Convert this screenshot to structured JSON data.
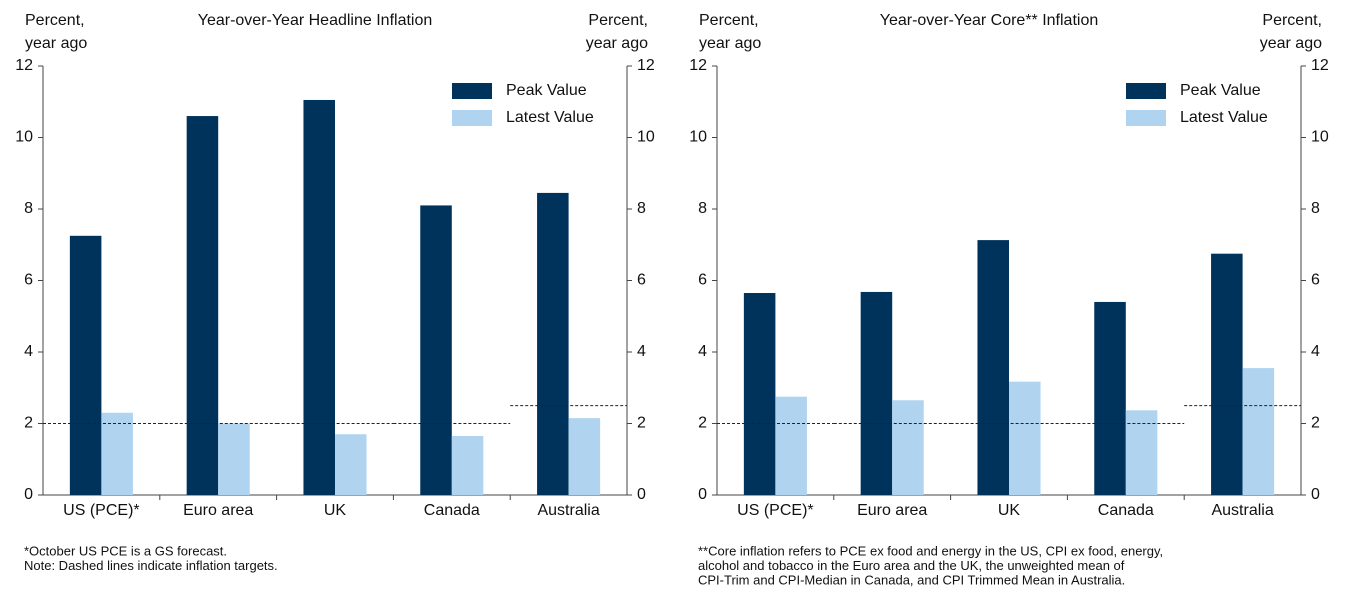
{
  "chart_data": [
    {
      "type": "bar",
      "title": "Year-over-Year Headline Inflation",
      "y_label": [
        "Percent,",
        "year ago"
      ],
      "y2_label": [
        "Percent,",
        "year ago"
      ],
      "categories": [
        "US (PCE)*",
        "Euro area",
        "UK",
        "Canada",
        "Australia"
      ],
      "series": [
        {
          "name": "Peak Value",
          "color": "#00335c",
          "values": [
            7.25,
            10.6,
            11.05,
            8.1,
            8.45
          ]
        },
        {
          "name": "Latest Value",
          "color": "#b0d4f0",
          "values": [
            2.3,
            2.0,
            1.7,
            1.65,
            2.15
          ]
        }
      ],
      "targets": [
        2,
        2,
        2,
        2,
        2.5
      ],
      "ylim": [
        0,
        12
      ],
      "yticks": [
        0,
        2,
        4,
        6,
        8,
        10,
        12
      ],
      "y2lim": [
        0,
        12
      ],
      "y2ticks": [
        0,
        2,
        4,
        6,
        8,
        10,
        12
      ],
      "legend": "upper right",
      "notes": [
        "*October US PCE is a GS forecast.",
        "Note: Dashed lines indicate inflation targets."
      ]
    },
    {
      "type": "bar",
      "title": "Year-over-Year Core** Inflation",
      "y_label": [
        "Percent,",
        "year ago"
      ],
      "y2_label": [
        "Percent,",
        "year ago"
      ],
      "categories": [
        "US (PCE)*",
        "Euro area",
        "UK",
        "Canada",
        "Australia"
      ],
      "series": [
        {
          "name": "Peak Value",
          "color": "#00335c",
          "values": [
            5.65,
            5.68,
            7.13,
            5.4,
            6.75
          ]
        },
        {
          "name": "Latest Value",
          "color": "#b0d4f0",
          "values": [
            2.75,
            2.65,
            3.17,
            2.37,
            3.55
          ]
        }
      ],
      "targets": [
        2,
        2,
        2,
        2,
        2.5
      ],
      "ylim": [
        0,
        12
      ],
      "yticks": [
        0,
        2,
        4,
        6,
        8,
        10,
        12
      ],
      "y2lim": [
        0,
        12
      ],
      "y2ticks": [
        0,
        2,
        4,
        6,
        8,
        10,
        12
      ],
      "legend": "upper right",
      "notes": [
        "**Core inflation refers to PCE ex food and energy in the US, CPI ex food, energy,",
        "alcohol and tobacco in the Euro area and the UK, the unweighted mean of",
        "CPI-Trim and CPI-Median in Canada, and CPI Trimmed Mean in Australia."
      ]
    }
  ]
}
